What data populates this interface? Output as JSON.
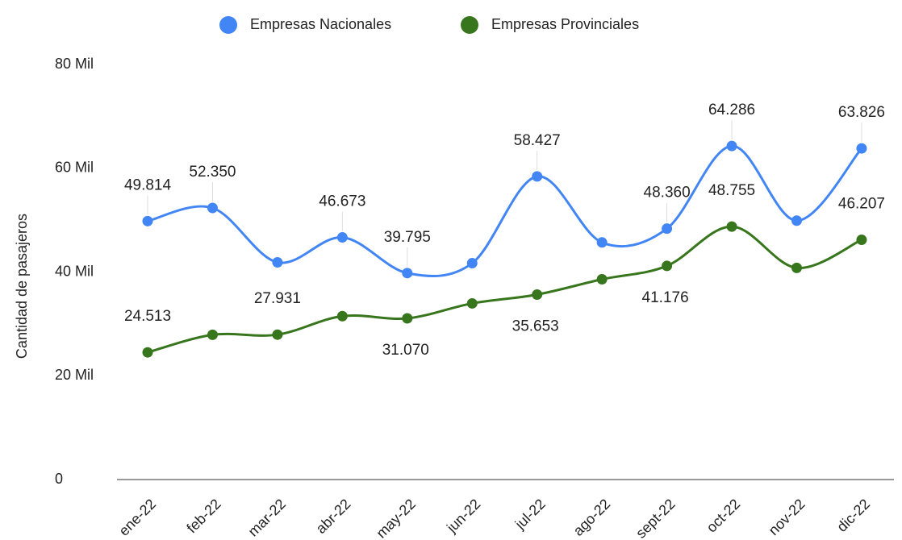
{
  "chart_data": {
    "type": "line",
    "categories": [
      "ene-22",
      "feb-22",
      "mar-22",
      "abr-22",
      "may-22",
      "jun-22",
      "jul-22",
      "ago-22",
      "sept-22",
      "oct-22",
      "nov-22",
      "dic-22"
    ],
    "series": [
      {
        "name": "Empresas Nacionales",
        "color": "#4285f4",
        "values": [
          49814,
          52350,
          41860,
          46673,
          39795,
          41700,
          58427,
          45700,
          48360,
          64286,
          49900,
          63826
        ],
        "value_labels": [
          "49.814",
          "52.350",
          null,
          "46.673",
          "39.795",
          null,
          "58.427",
          null,
          "48.360",
          "64.286",
          null,
          "63.826"
        ]
      },
      {
        "name": "Empresas Provinciales",
        "color": "#38761d",
        "values": [
          24513,
          27900,
          27931,
          31500,
          31070,
          33950,
          35653,
          38600,
          41176,
          48755,
          40800,
          46207
        ],
        "value_labels": [
          "24.513",
          null,
          "27.931",
          null,
          "31.070",
          null,
          "35.653",
          null,
          "41.176",
          "48.755",
          null,
          "46.207"
        ]
      }
    ],
    "y_label": "Cantidad de pasajeros",
    "ylim": [
      0,
      80000
    ],
    "yticks": [
      0,
      {
        "value": 20000,
        "label": "20 Mil"
      },
      {
        "value": 40000,
        "label": "40 Mil"
      },
      {
        "value": 60000,
        "label": "60 Mil"
      },
      {
        "value": 80000,
        "label": "80 Mil"
      }
    ],
    "legend": "top"
  }
}
